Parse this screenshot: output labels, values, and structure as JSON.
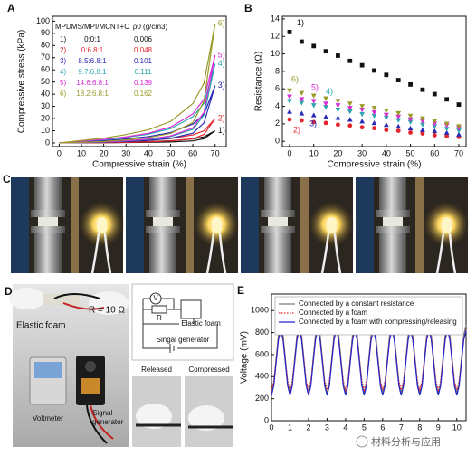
{
  "chart_data": [
    {
      "type": "line",
      "panel_label": "A",
      "x_label": "Compressive strain (%)",
      "y_label": "Compressive stress (kPa)",
      "xlim": [
        -3,
        75
      ],
      "ylim": [
        -3,
        104
      ],
      "xticks": [
        0,
        10,
        20,
        30,
        40,
        50,
        60,
        70
      ],
      "yticks": [
        0,
        10,
        20,
        30,
        40,
        50,
        60,
        70,
        80,
        90,
        100
      ],
      "legend": "inline",
      "legend_columns": [
        "MPDMS/MPI/MCNT+C",
        "ρ0 (g/cm3)"
      ],
      "x": [
        0,
        10,
        20,
        30,
        40,
        50,
        60,
        65,
        70,
        65,
        60,
        50,
        40,
        30,
        20,
        10,
        0
      ],
      "series": [
        {
          "name": "1)",
          "ratio": "0:0:1",
          "density": 0.006,
          "color": "#111111",
          "values": [
            0,
            0.2,
            0.4,
            0.7,
            1.1,
            1.8,
            3.3,
            5,
            10,
            3.5,
            1.7,
            0.8,
            0.5,
            0.3,
            0.1,
            0.1,
            0
          ]
        },
        {
          "name": "2)",
          "ratio": "0:6.8:1",
          "density": 0.048,
          "color": "#e3242b",
          "values": [
            0,
            0.4,
            0.8,
            1.4,
            2.2,
            3.6,
            6.6,
            10,
            20,
            7,
            3.4,
            1.6,
            0.9,
            0.5,
            0.2,
            0.1,
            0
          ]
        },
        {
          "name": "3)",
          "ratio": "8.5:6.8:1",
          "density": 0.101,
          "color": "#2a2ab8",
          "values": [
            0,
            0.9,
            1.9,
            3.3,
            5.2,
            8.5,
            15.5,
            23.5,
            47,
            16.5,
            8,
            3.8,
            2.1,
            1.2,
            0.6,
            0.2,
            0
          ]
        },
        {
          "name": "4)",
          "ratio": "9.7:6.8:1",
          "density": 0.111,
          "color": "#28a7b0",
          "values": [
            0,
            1.3,
            2.6,
            4.6,
            7.2,
            11.7,
            21.5,
            32.5,
            65,
            22.8,
            11.1,
            5.2,
            2.9,
            1.6,
            0.8,
            0.3,
            0
          ]
        },
        {
          "name": "5)",
          "ratio": "14.6:6.8:1",
          "density": 0.139,
          "color": "#d62ad6",
          "values": [
            0,
            1.4,
            2.9,
            5,
            7.9,
            13,
            23.8,
            36,
            72,
            25.2,
            12.2,
            5.8,
            3.2,
            1.8,
            0.9,
            0.4,
            0
          ]
        },
        {
          "name": "6)",
          "ratio": "18.2:6.8:1",
          "density": 0.162,
          "color": "#9a9a28",
          "values": [
            0,
            2,
            3.9,
            6.9,
            10.8,
            17.6,
            32.3,
            49,
            98,
            34.3,
            16.7,
            7.8,
            4.4,
            2.5,
            1.2,
            0.5,
            0
          ]
        }
      ]
    },
    {
      "type": "scatter",
      "panel_label": "B",
      "x_label": "Compressive strain (%)",
      "y_label": "Resistance (Ω)",
      "xlim": [
        -3,
        73
      ],
      "ylim": [
        -0.6,
        14.3
      ],
      "xticks": [
        0,
        10,
        20,
        30,
        40,
        50,
        60,
        70
      ],
      "yticks": [
        0,
        2,
        4,
        6,
        8,
        10,
        12,
        14
      ],
      "legend": "inline",
      "x": [
        0,
        5,
        10,
        15,
        20,
        25,
        30,
        35,
        40,
        45,
        50,
        55,
        60,
        65,
        70
      ],
      "series": [
        {
          "name": "1)",
          "color": "#111111",
          "marker": "square",
          "values": [
            12.5,
            11.4,
            10.9,
            10.3,
            9.8,
            9.2,
            8.7,
            8.1,
            7.6,
            7.0,
            6.5,
            5.9,
            5.4,
            4.8,
            4.2
          ]
        },
        {
          "name": "2)",
          "color": "#e3242b",
          "marker": "circle",
          "values": [
            2.5,
            2.4,
            2.2,
            2.1,
            1.9,
            1.8,
            1.6,
            1.5,
            1.3,
            1.2,
            1.0,
            0.9,
            0.7,
            0.6,
            0.5
          ]
        },
        {
          "name": "3)",
          "color": "#2a2ab8",
          "marker": "triangle-up",
          "values": [
            3.4,
            3.2,
            3.0,
            2.8,
            2.7,
            2.5,
            2.3,
            2.1,
            1.9,
            1.7,
            1.5,
            1.3,
            1.2,
            1.0,
            0.8
          ]
        },
        {
          "name": "4)",
          "color": "#28a7b0",
          "marker": "triangle-down",
          "values": [
            4.6,
            4.4,
            4.1,
            3.9,
            3.6,
            3.4,
            3.1,
            2.9,
            2.7,
            2.4,
            2.2,
            1.9,
            1.7,
            1.4,
            1.2
          ]
        },
        {
          "name": "5)",
          "color": "#d62ad6",
          "marker": "triangle-down",
          "values": [
            5.1,
            4.8,
            4.6,
            4.3,
            4.1,
            3.8,
            3.6,
            3.3,
            3.0,
            2.8,
            2.5,
            2.3,
            2.0,
            1.8,
            1.5
          ]
        },
        {
          "name": "6)",
          "color": "#9a9a28",
          "marker": "triangle-down",
          "values": [
            5.8,
            5.5,
            5.2,
            4.9,
            4.6,
            4.3,
            4.0,
            3.8,
            3.5,
            3.2,
            2.9,
            2.6,
            2.3,
            2.0,
            1.7
          ]
        }
      ]
    },
    {
      "type": "line",
      "panel_label": "E",
      "y_label": "Voltage (mV)",
      "xlim": [
        0,
        10.5
      ],
      "ylim": [
        0,
        1150
      ],
      "xticks": [
        0,
        1,
        2,
        3,
        4,
        5,
        6,
        7,
        8,
        9,
        10
      ],
      "yticks": [
        0,
        200,
        400,
        600,
        800,
        1000
      ],
      "legend": "box",
      "x": [
        0,
        0.125,
        0.25,
        0.375,
        0.5,
        0.625,
        0.75,
        0.875,
        1,
        1.125,
        1.25,
        1.375,
        1.5,
        1.625,
        1.75,
        1.875,
        2,
        2.125,
        2.25,
        2.375,
        2.5,
        2.625,
        2.75,
        2.875,
        3,
        3.125,
        3.25,
        3.375,
        3.5,
        3.625,
        3.75,
        3.875,
        4,
        4.125,
        4.25,
        4.375,
        4.5,
        4.625,
        4.75,
        4.875,
        5,
        5.125,
        5.25,
        5.375,
        5.5,
        5.625,
        5.75,
        5.875,
        6,
        6.125,
        6.25,
        6.375,
        6.5,
        6.625,
        6.75,
        6.875,
        7,
        7.125,
        7.25,
        7.375,
        7.5,
        7.625,
        7.75,
        7.875,
        8,
        8.125,
        8.25,
        8.375,
        8.5,
        8.625,
        8.75,
        8.875,
        9,
        9.125,
        9.25,
        9.375,
        9.5,
        9.625,
        9.75,
        9.875,
        10,
        10.125,
        10.25,
        10.375,
        10.5
      ],
      "series": [
        {
          "name": "Connected by a constant resistance",
          "color": "#7a7a7a",
          "line_style": "solid",
          "values": [
            250,
            341,
            560,
            779,
            870,
            779,
            560,
            341,
            250,
            341,
            560,
            779,
            870,
            779,
            560,
            341,
            250,
            341,
            560,
            779,
            870,
            779,
            560,
            341,
            250,
            341,
            560,
            779,
            870,
            779,
            560,
            341,
            250,
            341,
            560,
            779,
            870,
            779,
            560,
            341,
            250,
            341,
            560,
            779,
            870,
            779,
            560,
            341,
            250,
            341,
            560,
            779,
            870,
            779,
            560,
            341,
            250,
            341,
            560,
            779,
            870,
            779,
            560,
            341,
            250,
            341,
            560,
            779,
            870,
            779,
            560,
            341,
            250,
            341,
            560,
            779,
            870,
            779,
            560,
            341,
            250,
            341,
            560,
            779,
            870
          ]
        },
        {
          "name": "Connected by a foam",
          "color": "#e3242b",
          "line_style": "dotted",
          "values": [
            280,
            361,
            555,
            749,
            830,
            749,
            555,
            361,
            280,
            361,
            555,
            749,
            830,
            749,
            555,
            361,
            280,
            361,
            555,
            749,
            830,
            749,
            555,
            361,
            280,
            361,
            555,
            749,
            830,
            749,
            555,
            361,
            280,
            361,
            555,
            749,
            830,
            749,
            555,
            361,
            280,
            361,
            555,
            749,
            830,
            749,
            555,
            361,
            280,
            361,
            555,
            749,
            830,
            749,
            555,
            361,
            280,
            361,
            555,
            749,
            830,
            749,
            555,
            361,
            280,
            361,
            555,
            749,
            830,
            749,
            555,
            361,
            280,
            361,
            555,
            749,
            830,
            749,
            555,
            361,
            280,
            361,
            555,
            749,
            830
          ]
        },
        {
          "name": "Connected by a foam with compressing/releasing",
          "color": "#2323c8",
          "line_style": "solid",
          "values": [
            230,
            316,
            525,
            734,
            820,
            734,
            525,
            316,
            230,
            316,
            525,
            734,
            820,
            734,
            525,
            316,
            230,
            316,
            525,
            734,
            820,
            734,
            525,
            316,
            230,
            316,
            525,
            734,
            820,
            734,
            525,
            316,
            230,
            316,
            525,
            734,
            820,
            734,
            525,
            316,
            230,
            316,
            525,
            734,
            820,
            734,
            525,
            316,
            230,
            316,
            525,
            734,
            820,
            734,
            525,
            316,
            230,
            316,
            525,
            734,
            820,
            734,
            525,
            316,
            230,
            316,
            525,
            734,
            820,
            734,
            525,
            316,
            230,
            316,
            525,
            734,
            820,
            734,
            525,
            316,
            230,
            316,
            525,
            734,
            820
          ]
        }
      ]
    }
  ],
  "panel_C": {
    "label": "C"
  },
  "panel_D": {
    "label": "D",
    "photo_labels": {
      "elastic_foam": "Elastic foam",
      "resistor": "R = 10 Ω",
      "voltmeter": "Voltmeter",
      "signal_generator": [
        "Signal",
        "generator"
      ]
    },
    "circuit": {
      "voltmeter": "V",
      "resistor": "R",
      "foam": "Elastic foam",
      "generator": "Singal generator"
    },
    "insets": [
      "Released",
      "Compressed"
    ]
  },
  "watermark": "材料分析与应用"
}
